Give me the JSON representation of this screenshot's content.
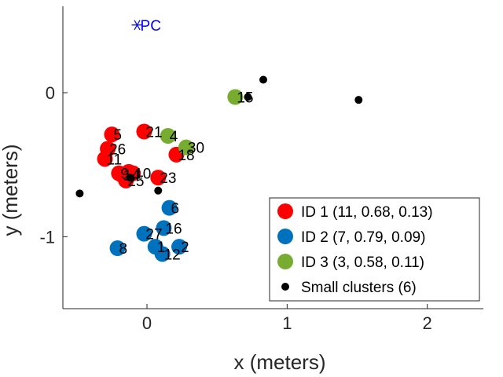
{
  "chart_data": {
    "type": "scatter",
    "xlabel": "x (meters)",
    "ylabel": "y (meters)",
    "xlim": [
      -0.6,
      2.4
    ],
    "ylim": [
      -1.5,
      0.6
    ],
    "xticks": [
      0,
      1,
      2
    ],
    "yticks": [
      -1,
      0
    ],
    "xtick_labels": [
      "0",
      "1",
      "2"
    ],
    "ytick_labels": [
      "-1",
      "0"
    ],
    "grid": false,
    "legend_position": "bottom-right",
    "reference": {
      "label": "PC",
      "x": -0.07,
      "y": 0.47,
      "marker": "asterisk",
      "color": "#0000ff"
    },
    "series": [
      {
        "name": "ID 1 (11, 0.68, 0.13)",
        "color": "#ff0000",
        "marker": "large-circle",
        "points": [
          {
            "id": "5",
            "x": -0.25,
            "y": -0.29
          },
          {
            "id": "21",
            "x": -0.02,
            "y": -0.27
          },
          {
            "id": "26",
            "x": -0.28,
            "y": -0.39
          },
          {
            "id": "11",
            "x": -0.3,
            "y": -0.46
          },
          {
            "id": "18",
            "x": 0.21,
            "y": -0.43
          },
          {
            "id": "9",
            "x": -0.2,
            "y": -0.56
          },
          {
            "id": "14",
            "x": -0.18,
            "y": -0.57
          },
          {
            "id": "10",
            "x": -0.1,
            "y": -0.56
          },
          {
            "id": "25",
            "x": -0.15,
            "y": -0.61
          },
          {
            "id": "23",
            "x": 0.08,
            "y": -0.59
          },
          {
            "id": "",
            "x": -0.13,
            "y": -0.55
          }
        ]
      },
      {
        "name": "ID 2 (7, 0.79, 0.09)",
        "color": "#0072bd",
        "marker": "large-circle",
        "points": [
          {
            "id": "6",
            "x": 0.16,
            "y": -0.8
          },
          {
            "id": "16",
            "x": 0.12,
            "y": -0.94
          },
          {
            "id": "27",
            "x": -0.02,
            "y": -0.98
          },
          {
            "id": "8",
            "x": -0.21,
            "y": -1.08
          },
          {
            "id": "1",
            "x": 0.06,
            "y": -1.07
          },
          {
            "id": "12",
            "x": 0.11,
            "y": -1.12
          },
          {
            "id": "2",
            "x": 0.23,
            "y": -1.07
          }
        ]
      },
      {
        "name": "ID 3 (3, 0.58, 0.11)",
        "color": "#77ac30",
        "marker": "large-circle",
        "points": [
          {
            "id": "15",
            "x": 0.63,
            "y": -0.03
          },
          {
            "id": "4",
            "x": 0.15,
            "y": -0.3
          },
          {
            "id": "30",
            "x": 0.28,
            "y": -0.38
          }
        ]
      },
      {
        "name": "Small clusters (6)",
        "color": "#000000",
        "marker": "small-dot",
        "points": [
          {
            "id": "",
            "x": 0.83,
            "y": 0.09
          },
          {
            "id": "",
            "x": 1.51,
            "y": -0.05
          },
          {
            "id": "",
            "x": 0.72,
            "y": -0.03
          },
          {
            "id": "",
            "x": -0.48,
            "y": -0.7
          },
          {
            "id": "",
            "x": 0.08,
            "y": -0.68
          },
          {
            "id": "",
            "x": -0.12,
            "y": -0.59
          }
        ]
      }
    ]
  }
}
